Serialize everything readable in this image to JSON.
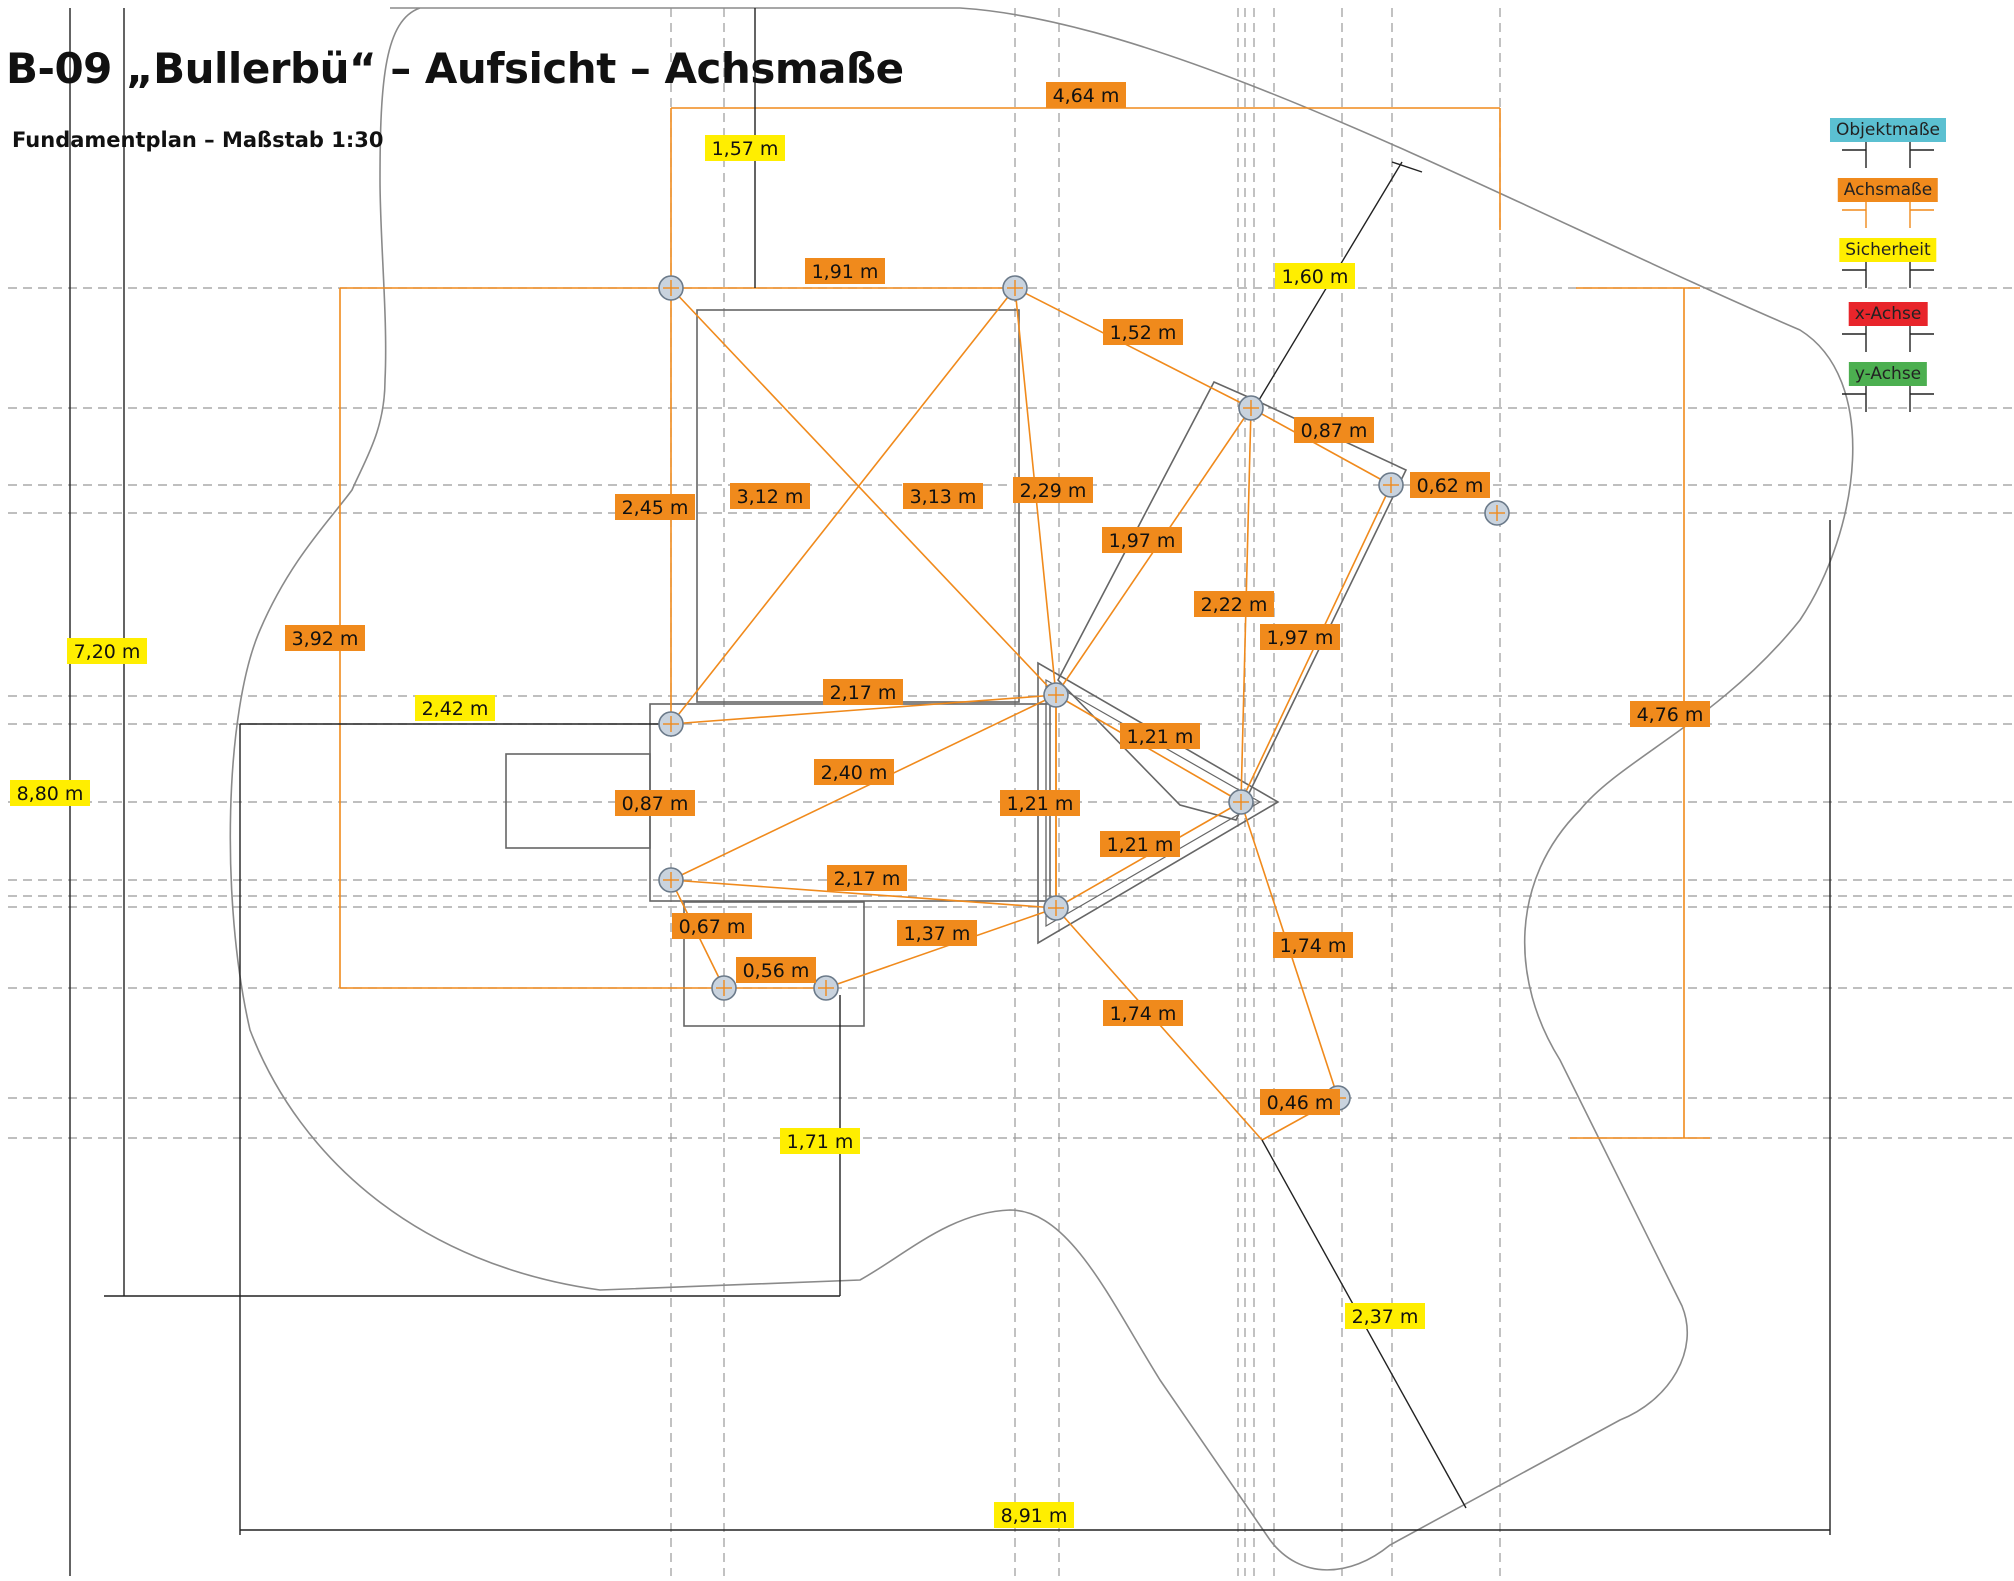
{
  "title": "B-09 „Bullerbü“ – Aufsicht – Achsmaße",
  "subtitle": "Fundamentplan – Maßstab 1:30",
  "legend": [
    {
      "label": "Objektmaße",
      "color": "#5bc0d1",
      "text_color": "#222222"
    },
    {
      "label": "Achsmaße",
      "color": "#f08a1c",
      "text_color": "#222222"
    },
    {
      "label": "Sicherheit",
      "color": "#ffee00",
      "text_color": "#222222"
    },
    {
      "label": "x-Achse",
      "color": "#e8252b",
      "text_color": "#222222"
    },
    {
      "label": "y-Achse",
      "color": "#4caf50",
      "text_color": "#222222"
    }
  ],
  "colors": {
    "axis": "#f08a1c",
    "safety": "#ffee00",
    "outline": "#777777",
    "gridline": "#999999",
    "post_fill": "#c9d3de",
    "post_stroke": "#6b7a8a"
  },
  "safety_labels": [
    {
      "id": "s-157",
      "text": "1,57 m"
    },
    {
      "id": "s-160",
      "text": "1,60 m"
    },
    {
      "id": "s-720",
      "text": "7,20 m"
    },
    {
      "id": "s-242",
      "text": "2,42 m"
    },
    {
      "id": "s-880",
      "text": "8,80 m"
    },
    {
      "id": "s-171",
      "text": "1,71 m"
    },
    {
      "id": "s-237",
      "text": "2,37 m"
    },
    {
      "id": "s-891",
      "text": "8,91 m"
    }
  ],
  "axis_labels": [
    {
      "id": "a-464",
      "text": "4,64 m"
    },
    {
      "id": "a-191",
      "text": "1,91 m"
    },
    {
      "id": "a-152",
      "text": "1,52 m"
    },
    {
      "id": "a-087a",
      "text": "0,87 m"
    },
    {
      "id": "a-062",
      "text": "0,62 m"
    },
    {
      "id": "a-245",
      "text": "2,45 m"
    },
    {
      "id": "a-312",
      "text": "3,12 m"
    },
    {
      "id": "a-313",
      "text": "3,13 m"
    },
    {
      "id": "a-229",
      "text": "2,29 m"
    },
    {
      "id": "a-197a",
      "text": "1,97 m"
    },
    {
      "id": "a-222",
      "text": "2,22 m"
    },
    {
      "id": "a-197b",
      "text": "1,97 m"
    },
    {
      "id": "a-392",
      "text": "3,92 m"
    },
    {
      "id": "a-217a",
      "text": "2,17 m"
    },
    {
      "id": "a-121a",
      "text": "1,21 m"
    },
    {
      "id": "a-476",
      "text": "4,76 m"
    },
    {
      "id": "a-240",
      "text": "2,40 m"
    },
    {
      "id": "a-087b",
      "text": "0,87 m"
    },
    {
      "id": "a-121b",
      "text": "1,21 m"
    },
    {
      "id": "a-121c",
      "text": "1,21 m"
    },
    {
      "id": "a-217b",
      "text": "2,17 m"
    },
    {
      "id": "a-067",
      "text": "0,67 m"
    },
    {
      "id": "a-137",
      "text": "1,37 m"
    },
    {
      "id": "a-174a",
      "text": "1,74 m"
    },
    {
      "id": "a-056",
      "text": "0,56 m"
    },
    {
      "id": "a-174b",
      "text": "1,74 m"
    },
    {
      "id": "a-046",
      "text": "0,46 m"
    }
  ]
}
